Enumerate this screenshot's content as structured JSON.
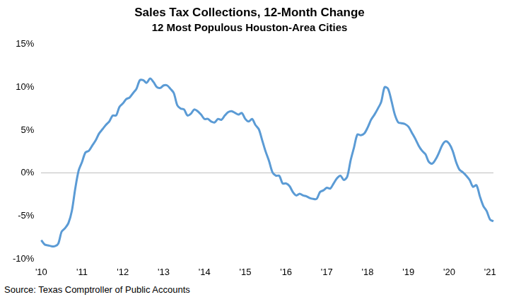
{
  "chart_data": {
    "type": "line",
    "title": "Sales Tax Collections, 12-Month Change",
    "subtitle": "12 Most Populous Houston-Area Cities",
    "source": "Source: Texas Comptroller of Public Accounts",
    "categories": [
      "'10",
      null,
      null,
      null,
      null,
      null,
      null,
      null,
      null,
      null,
      null,
      null,
      "'11",
      null,
      null,
      null,
      null,
      null,
      null,
      null,
      null,
      null,
      null,
      null,
      "'12",
      null,
      null,
      null,
      null,
      null,
      null,
      null,
      null,
      null,
      null,
      null,
      "'13",
      null,
      null,
      null,
      null,
      null,
      null,
      null,
      null,
      null,
      null,
      null,
      "'14",
      null,
      null,
      null,
      null,
      null,
      null,
      null,
      null,
      null,
      null,
      null,
      "'15",
      null,
      null,
      null,
      null,
      null,
      null,
      null,
      null,
      null,
      null,
      null,
      "'16",
      null,
      null,
      null,
      null,
      null,
      null,
      null,
      null,
      null,
      null,
      null,
      "'17",
      null,
      null,
      null,
      null,
      null,
      null,
      null,
      null,
      null,
      null,
      null,
      "'18",
      null,
      null,
      null,
      null,
      null,
      null,
      null,
      null,
      null,
      null,
      null,
      "'19",
      null,
      null,
      null,
      null,
      null,
      null,
      null,
      null,
      null,
      null,
      null,
      "'20",
      null,
      null,
      null,
      null,
      null,
      null,
      null,
      null,
      null,
      null,
      null,
      "'21",
      null
    ],
    "values": [
      -7.8,
      -8.3,
      -8.4,
      -8.5,
      -8.5,
      -8.2,
      -6.8,
      -6.4,
      -5.8,
      -4.4,
      -1.8,
      0.3,
      1.3,
      2.4,
      2.6,
      3.2,
      3.8,
      4.6,
      5.1,
      5.6,
      6.0,
      6.7,
      6.7,
      7.7,
      8.1,
      8.6,
      8.8,
      9.3,
      9.8,
      10.8,
      10.8,
      10.5,
      11.0,
      10.6,
      10.0,
      9.9,
      10.2,
      10.2,
      9.8,
      9.3,
      7.9,
      7.5,
      7.4,
      6.7,
      6.9,
      7.4,
      7.2,
      6.8,
      6.3,
      6.3,
      6.0,
      5.9,
      6.3,
      6.2,
      6.7,
      7.1,
      7.2,
      7.0,
      6.8,
      7.0,
      6.3,
      6.0,
      6.3,
      5.6,
      5.1,
      3.8,
      2.5,
      1.4,
      0.1,
      -0.3,
      -0.3,
      -1.2,
      -1.2,
      -1.5,
      -2.2,
      -2.6,
      -2.4,
      -2.6,
      -2.7,
      -2.9,
      -3.0,
      -3.0,
      -2.2,
      -2.0,
      -1.7,
      -1.8,
      -1.2,
      -0.6,
      -0.3,
      -0.8,
      -0.4,
      1.5,
      3.0,
      4.5,
      4.4,
      4.6,
      5.3,
      6.2,
      6.8,
      7.5,
      8.3,
      10.0,
      9.8,
      8.4,
      6.8,
      5.9,
      5.8,
      5.7,
      5.4,
      4.7,
      4.0,
      3.2,
      2.6,
      2.2,
      1.3,
      1.1,
      1.6,
      2.4,
      3.3,
      3.7,
      3.4,
      2.6,
      1.3,
      0.4,
      0.1,
      -0.3,
      -0.8,
      -1.6,
      -1.4,
      -2.7,
      -3.8,
      -4.4,
      -5.4,
      -5.6
    ],
    "color": "#5b9bd5",
    "ylim": [
      -10,
      15
    ],
    "yticks": [
      {
        "value": -10,
        "label": "-10%"
      },
      {
        "value": -5,
        "label": "-5%"
      },
      {
        "value": 0,
        "label": "0%"
      },
      {
        "value": 5,
        "label": "5%"
      },
      {
        "value": 10,
        "label": "10%"
      },
      {
        "value": 15,
        "label": "15%"
      }
    ],
    "grid": false,
    "marker": "none",
    "line_style": "solid"
  }
}
